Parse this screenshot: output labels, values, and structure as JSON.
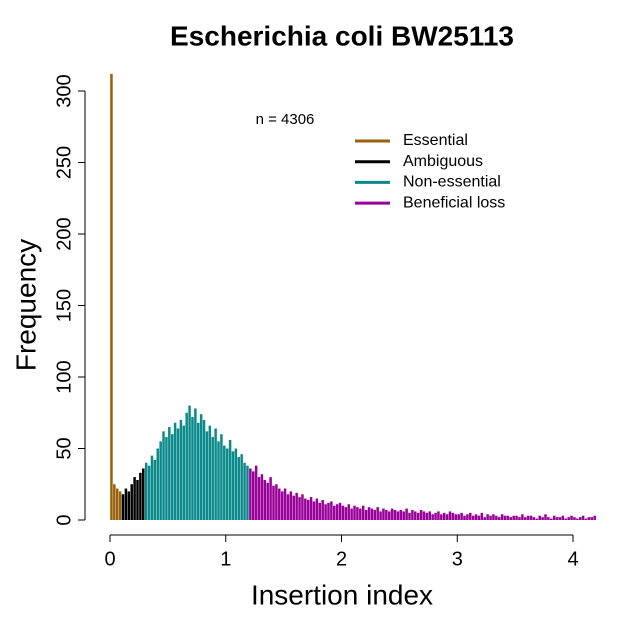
{
  "chart_data": {
    "type": "histogram",
    "title": "Escherichia coli BW25113",
    "xlabel": "Insertion index",
    "ylabel": "Frequency",
    "annotation": "n = 4306",
    "xlim": [
      0,
      4
    ],
    "ylim": [
      0,
      300
    ],
    "xticks": [
      0,
      1,
      2,
      3,
      4
    ],
    "yticks": [
      0,
      50,
      100,
      150,
      200,
      250,
      300
    ],
    "series": [
      {
        "name": "Essential",
        "color": "#99600a",
        "bins": [
          0,
          0.025,
          0.05,
          0.075,
          0.1
        ],
        "values": [
          312,
          25,
          22,
          20
        ]
      },
      {
        "name": "Ambiguous",
        "color": "#000000",
        "bins": [
          0.1,
          0.125,
          0.15,
          0.175,
          0.2,
          0.225,
          0.25,
          0.275,
          0.3
        ],
        "values": [
          18,
          22,
          20,
          25,
          30,
          28,
          33,
          36
        ]
      },
      {
        "name": "Non-essential",
        "color": "#0a8a8a",
        "bins": [
          0.3,
          0.325,
          0.35,
          0.375,
          0.4,
          0.425,
          0.45,
          0.475,
          0.5,
          0.525,
          0.55,
          0.575,
          0.6,
          0.625,
          0.65,
          0.675,
          0.7,
          0.725,
          0.75,
          0.775,
          0.8,
          0.825,
          0.85,
          0.875,
          0.9,
          0.925,
          0.95,
          0.975,
          1,
          1.025,
          1.05,
          1.075,
          1.1,
          1.125,
          1.15,
          1.175,
          1.2
        ],
        "values": [
          40,
          38,
          45,
          42,
          50,
          55,
          62,
          58,
          65,
          60,
          68,
          64,
          70,
          66,
          75,
          80,
          72,
          78,
          68,
          74,
          70,
          62,
          66,
          58,
          64,
          55,
          60,
          52,
          50,
          56,
          48,
          50,
          44,
          46,
          40,
          38
        ]
      },
      {
        "name": "Beneficial loss",
        "color": "#990099",
        "bins": [
          1.2,
          1.225,
          1.25,
          1.275,
          1.3,
          1.325,
          1.35,
          1.375,
          1.4,
          1.425,
          1.45,
          1.475,
          1.5,
          1.525,
          1.55,
          1.575,
          1.6,
          1.625,
          1.65,
          1.675,
          1.7,
          1.725,
          1.75,
          1.775,
          1.8,
          1.825,
          1.85,
          1.875,
          1.9,
          1.925,
          1.95,
          1.975,
          2,
          2.025,
          2.05,
          2.075,
          2.1,
          2.125,
          2.15,
          2.175,
          2.2,
          2.225,
          2.25,
          2.275,
          2.3,
          2.325,
          2.35,
          2.375,
          2.4,
          2.425,
          2.45,
          2.475,
          2.5,
          2.525,
          2.55,
          2.575,
          2.6,
          2.625,
          2.65,
          2.675,
          2.7,
          2.725,
          2.75,
          2.775,
          2.8,
          2.825,
          2.85,
          2.875,
          2.9,
          2.925,
          2.95,
          2.975,
          3,
          3.025,
          3.05,
          3.075,
          3.1,
          3.125,
          3.15,
          3.175,
          3.2,
          3.225,
          3.25,
          3.275,
          3.3,
          3.325,
          3.35,
          3.375,
          3.4,
          3.425,
          3.45,
          3.475,
          3.5,
          3.525,
          3.55,
          3.575,
          3.6,
          3.625,
          3.65,
          3.675,
          3.7,
          3.725,
          3.75,
          3.775,
          3.8,
          3.825,
          3.85,
          3.875,
          3.9,
          3.925,
          3.95,
          3.975,
          4,
          4.025,
          4.05,
          4.075,
          4.1,
          4.125,
          4.15,
          4.175,
          4.2
        ],
        "values": [
          36,
          34,
          38,
          30,
          32,
          28,
          26,
          30,
          24,
          25,
          22,
          20,
          22,
          18,
          20,
          17,
          19,
          16,
          18,
          15,
          14,
          16,
          13,
          15,
          12,
          14,
          11,
          12,
          13,
          10,
          11,
          12,
          10,
          9,
          11,
          8,
          10,
          9,
          8,
          10,
          7,
          9,
          8,
          7,
          9,
          6,
          8,
          7,
          6,
          8,
          7,
          6,
          7,
          6,
          8,
          5,
          7,
          6,
          5,
          7,
          6,
          5,
          6,
          4,
          5,
          6,
          4,
          5,
          4,
          6,
          5,
          4,
          4,
          5,
          3,
          4,
          5,
          3,
          4,
          3,
          5,
          2,
          4,
          3,
          4,
          3,
          2,
          4,
          3,
          3,
          2,
          3,
          3,
          2,
          4,
          2,
          3,
          3,
          2,
          1,
          3,
          2,
          4,
          2,
          1,
          3,
          2,
          2,
          3,
          1,
          2,
          3,
          2,
          1,
          2,
          3,
          1,
          2,
          2,
          3
        ]
      }
    ]
  }
}
